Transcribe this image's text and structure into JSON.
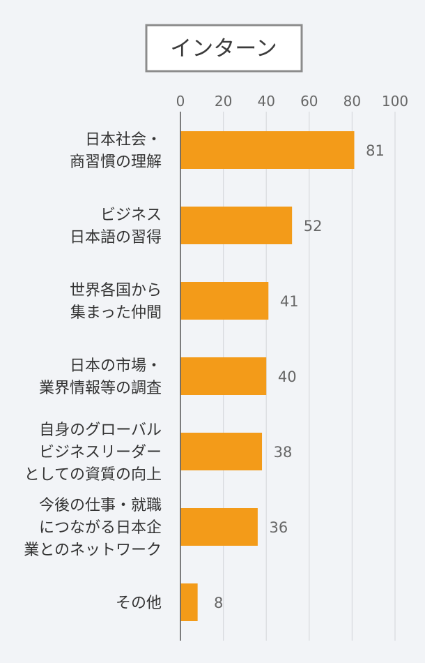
{
  "colors": {
    "background": "#f2f4f7",
    "bar": "#f39b19",
    "grid": "#d8dade",
    "axis": "#555555",
    "title_border": "#8c8c8c",
    "title_bg": "#ffffff",
    "text": "#333333",
    "muted_text": "#666666"
  },
  "chart_data": {
    "type": "bar",
    "orientation": "horizontal",
    "title": "インターン",
    "xlim": [
      0,
      100
    ],
    "xticks": [
      "0",
      "20",
      "40",
      "60",
      "80",
      "100"
    ],
    "grid": true,
    "categories": [
      [
        "日本社会・",
        "商習慣の理解"
      ],
      [
        "ビジネス",
        "日本語の習得"
      ],
      [
        "世界各国から",
        "集まった仲間"
      ],
      [
        "日本の市場・",
        "業界情報等の調査"
      ],
      [
        "自身のグローバル",
        "ビジネスリーダー",
        "としての資質の向上"
      ],
      [
        "今後の仕事・就職",
        "につながる日本企",
        "業とのネットワーク"
      ],
      [
        "その他"
      ]
    ],
    "values": [
      81,
      52,
      41,
      40,
      38,
      36,
      8
    ]
  }
}
